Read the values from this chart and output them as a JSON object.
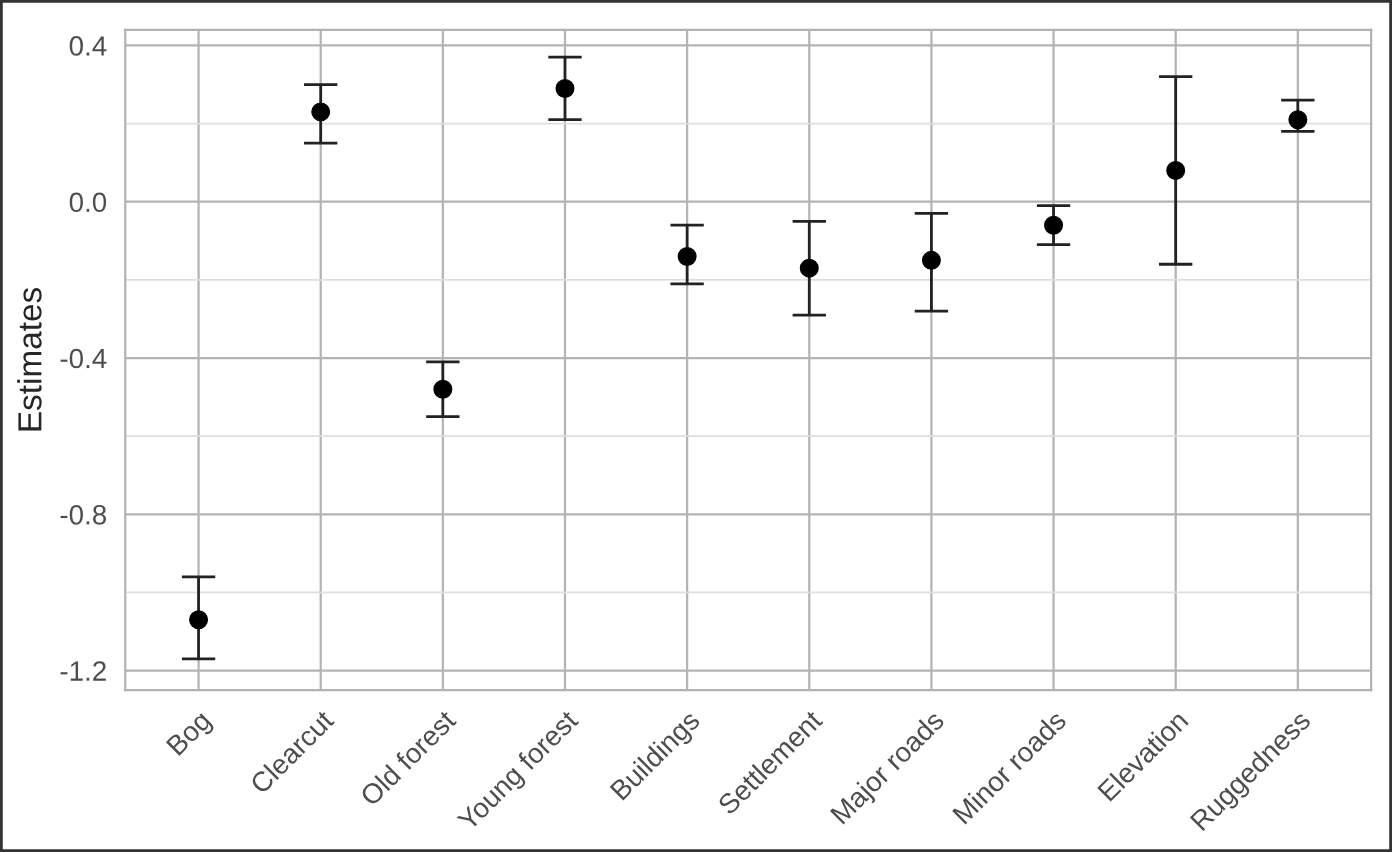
{
  "chart_data": {
    "type": "scatter",
    "ylabel": "Estimates",
    "categories": [
      "Bog",
      "Clearcut",
      "Old forest",
      "Young forest",
      "Buildings",
      "Settlement",
      "Major roads",
      "Minor roads",
      "Elevation",
      "Ruggedness"
    ],
    "values": [
      -1.07,
      0.23,
      -0.48,
      0.29,
      -0.14,
      -0.17,
      -0.15,
      -0.06,
      0.08,
      0.21
    ],
    "errors": [
      [
        -1.17,
        -0.96
      ],
      [
        0.15,
        0.3
      ],
      [
        -0.55,
        -0.41
      ],
      [
        0.21,
        0.37
      ],
      [
        -0.21,
        -0.06
      ],
      [
        -0.29,
        -0.05
      ],
      [
        -0.28,
        -0.03
      ],
      [
        -0.11,
        -0.01
      ],
      [
        -0.16,
        0.32
      ],
      [
        0.18,
        0.26
      ]
    ],
    "color": "#000000",
    "marker": "circle",
    "ylim": [
      -1.25,
      0.44
    ],
    "yticks": [
      -1.2,
      {
        "value": -1.0,
        "label": null
      },
      -0.8,
      {
        "value": -0.6,
        "label": null
      },
      -0.4,
      {
        "value": -0.2,
        "label": null
      },
      {
        "value": 0.0,
        "label": "0.0"
      },
      {
        "value": 0.2,
        "label": null
      },
      0.4
    ],
    "grid": true
  }
}
